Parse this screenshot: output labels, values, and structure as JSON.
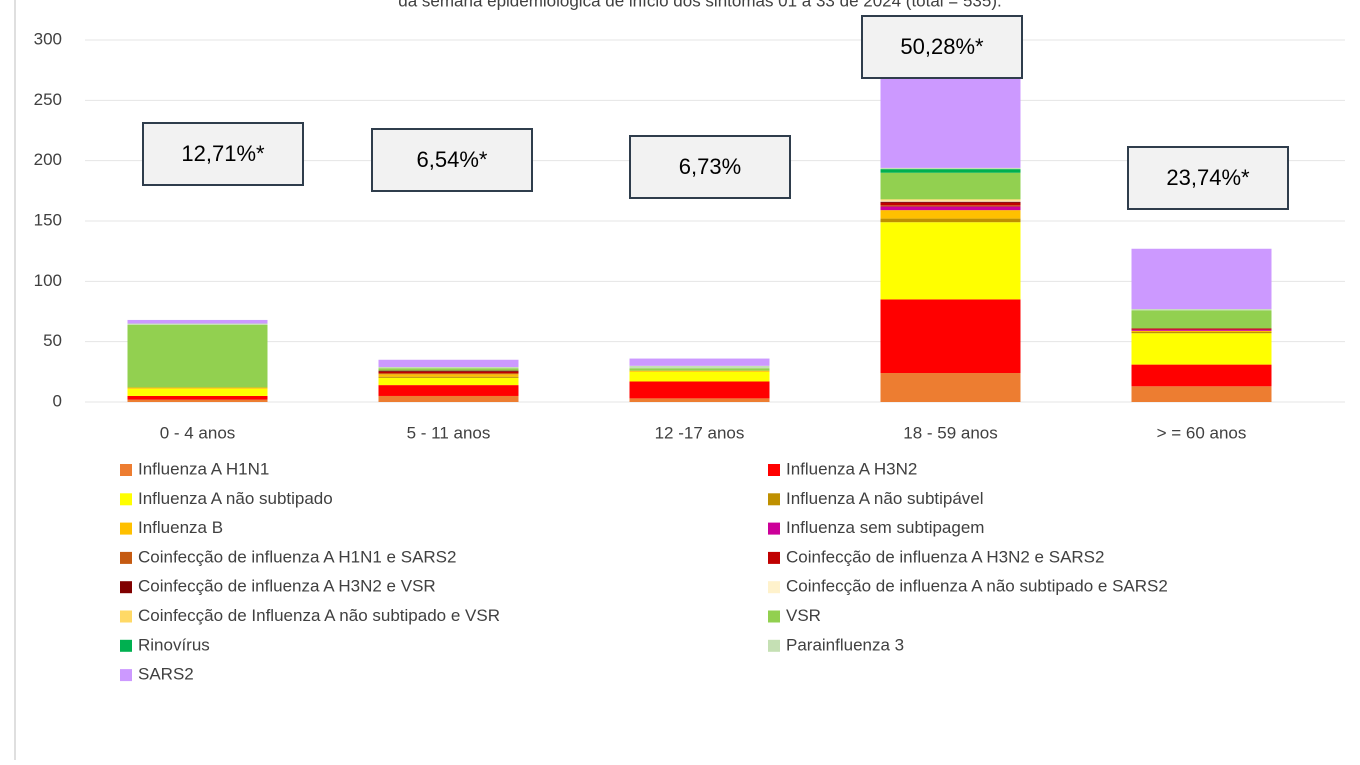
{
  "chart_data": {
    "type": "stacked_bar",
    "title": "da semana epidemiológica de início dos sintomas 01 a 33 de 2024 (total = 535).",
    "categories": [
      "0 - 4  anos",
      "5 - 11 anos",
      "12 -17 anos",
      "18 - 59 anos",
      "> = 60 anos"
    ],
    "ylim": [
      0,
      300
    ],
    "yticks": [
      0,
      50,
      100,
      150,
      200,
      250,
      300
    ],
    "grid": true,
    "annotations": [
      "12,71%*",
      "6,54%*",
      "6,73%",
      "50,28%*",
      "23,74%*"
    ],
    "series": [
      {
        "name": "Influenza A H1N1",
        "color": "#ed7d31",
        "values": [
          2,
          5,
          3,
          24,
          13
        ]
      },
      {
        "name": "Influenza A H3N2",
        "color": "#ff0000",
        "values": [
          3,
          9,
          14,
          61,
          18
        ]
      },
      {
        "name": "Influenza A não subtipado",
        "color": "#ffff00",
        "values": [
          6,
          6,
          8,
          64,
          26
        ]
      },
      {
        "name": "Influenza A não subtipável",
        "color": "#bf9000",
        "values": [
          0,
          1,
          0,
          3,
          1
        ]
      },
      {
        "name": "Influenza B",
        "color": "#ffc000",
        "values": [
          1,
          2,
          1,
          7,
          1
        ]
      },
      {
        "name": "Influenza sem subtipagem",
        "color": "#cc0099",
        "values": [
          0,
          0,
          0,
          3,
          1
        ]
      },
      {
        "name": "Coinfecção de influenza A H1N1 e SARS2",
        "color": "#c55a11",
        "values": [
          0,
          1,
          0,
          1,
          0
        ]
      },
      {
        "name": "Coinfecção de influenza A H3N2 e SARS2",
        "color": "#c00000",
        "values": [
          0,
          1,
          0,
          2,
          1
        ]
      },
      {
        "name": "Coinfecção de influenza A  H3N2  e VSR",
        "color": "#800000",
        "values": [
          0,
          1,
          0,
          1,
          0
        ]
      },
      {
        "name": "Coinfecção de influenza A não subtipado  e SARS2",
        "color": "#fff2cc",
        "values": [
          0,
          0,
          0,
          1,
          0
        ]
      },
      {
        "name": "Coinfecção de Influenza A não subtipado e VSR",
        "color": "#ffd966",
        "values": [
          0,
          0,
          0,
          1,
          0
        ]
      },
      {
        "name": "VSR",
        "color": "#92d050",
        "values": [
          52,
          2,
          2,
          22,
          15
        ]
      },
      {
        "name": "Rinovírus",
        "color": "#00b050",
        "values": [
          0,
          0,
          0,
          3,
          0
        ]
      },
      {
        "name": "Parainfluenza 3",
        "color": "#c5e0b4",
        "values": [
          1,
          1,
          2,
          1,
          1
        ]
      },
      {
        "name": "SARS2",
        "color": "#cc99ff",
        "values": [
          3,
          6,
          6,
          75,
          50
        ]
      }
    ]
  }
}
